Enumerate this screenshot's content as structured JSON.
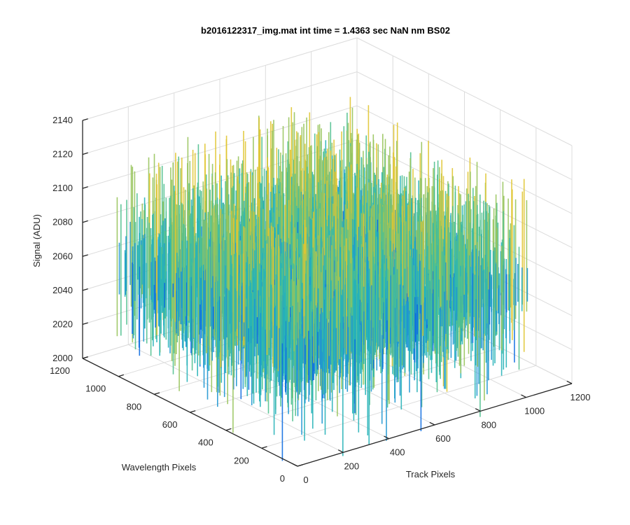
{
  "chart_data": {
    "type": "surface",
    "title": "b2016122317_img.mat int time = 1.4363 sec  NaN nm BS02",
    "xlabel": "Track Pixels",
    "ylabel": "Wavelength Pixels",
    "zlabel": "Signal (ADU)",
    "x_range": [
      0,
      1200
    ],
    "y_range": [
      0,
      1200
    ],
    "z_range": [
      2000,
      2140
    ],
    "data_extent": {
      "x": [
        0,
        1024
      ],
      "y": [
        0,
        1024
      ]
    },
    "x_ticks": [
      "0",
      "200",
      "400",
      "600",
      "800",
      "1000",
      "1200"
    ],
    "y_ticks": [
      "0",
      "200",
      "400",
      "600",
      "800",
      "1000",
      "1200"
    ],
    "z_ticks": [
      "2000",
      "2020",
      "2040",
      "2060",
      "2080",
      "2100",
      "2120",
      "2140"
    ],
    "signal_mean": 2060,
    "signal_spread": [
      2000,
      2140
    ],
    "colormap": [
      "#0d6be0",
      "#1e96d2",
      "#27b3b8",
      "#50c08f",
      "#98c45c",
      "#e0c532"
    ],
    "grid": true
  }
}
